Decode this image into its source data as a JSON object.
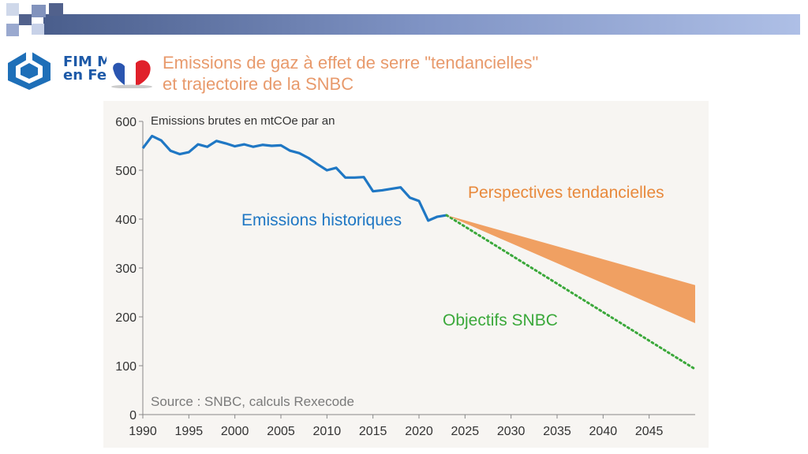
{
  "header": {
    "logo_text_line1": "FIM M",
    "logo_text_line2": "en Fe",
    "title_line1": "Emissions de gaz à effet de serre \"tendancielles\"",
    "title_line2": "et trajectoire de la SNBC"
  },
  "colors": {
    "historical": "#1f77c4",
    "trend": "#f0a062",
    "snbc": "#3aa83a",
    "title": "#e89a6c"
  },
  "chart_data": {
    "type": "line",
    "title": "Emissions de gaz à effet de serre \"tendancielles\" et trajectoire de la SNBC",
    "ylabel": "Emissions brutes en mtCOe par an",
    "source": "Source : SNBC, calculs Rexecode",
    "xlim": [
      1990,
      2050
    ],
    "ylim": [
      0,
      600
    ],
    "x_ticks": [
      1990,
      1995,
      2000,
      2005,
      2010,
      2015,
      2020,
      2025,
      2030,
      2035,
      2040,
      2045
    ],
    "y_ticks": [
      0,
      100,
      200,
      300,
      400,
      500,
      600
    ],
    "series": [
      {
        "name": "Emissions historiques",
        "style": "solid",
        "x": [
          1990,
          1991,
          1992,
          1993,
          1994,
          1995,
          1996,
          1997,
          1998,
          1999,
          2000,
          2001,
          2002,
          2003,
          2004,
          2005,
          2006,
          2007,
          2008,
          2009,
          2010,
          2011,
          2012,
          2013,
          2014,
          2015,
          2016,
          2017,
          2018,
          2019,
          2020,
          2021,
          2022,
          2023
        ],
        "y": [
          545,
          570,
          561,
          540,
          533,
          537,
          553,
          548,
          560,
          555,
          549,
          553,
          548,
          552,
          550,
          551,
          540,
          535,
          525,
          512,
          500,
          505,
          485,
          485,
          486,
          457,
          459,
          462,
          465,
          444,
          437,
          397,
          405,
          408
        ]
      },
      {
        "name": "Objectifs SNBC",
        "style": "dotted",
        "x": [
          2023,
          2050
        ],
        "y": [
          408,
          93
        ]
      },
      {
        "name": "Perspectives tendancielles",
        "style": "band",
        "x": [
          2023,
          2050
        ],
        "upper": [
          408,
          265
        ],
        "lower": [
          408,
          187
        ]
      }
    ],
    "annotations": [
      "Emissions historiques",
      "Perspectives tendancielles",
      "Objectifs SNBC"
    ]
  }
}
